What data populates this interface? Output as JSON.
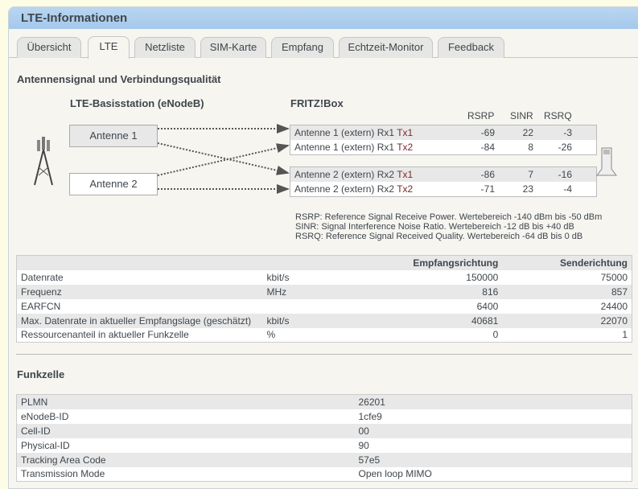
{
  "title": "LTE-Informationen",
  "tabs": [
    "Übersicht",
    "LTE",
    "Netzliste",
    "SIM-Karte",
    "Empfang",
    "Echtzeit-Monitor",
    "Feedback"
  ],
  "active_tab": "LTE",
  "section1": {
    "title": "Antennensignal und Verbindungsqualität",
    "station_title": "LTE-Basisstation (eNodeB)",
    "fritz_title": "FRITZ!Box",
    "antennas": [
      "Antenne 1",
      "Antenne 2"
    ],
    "cols": [
      "RSRP",
      "SINR",
      "RSRQ"
    ],
    "rows": [
      {
        "label": "Antenne 1 (extern) Rx1 ",
        "tx": "Tx1",
        "rsrp": "-69",
        "sinr": "22",
        "rsrq": "-3"
      },
      {
        "label": "Antenne 1 (extern) Rx1 ",
        "tx": "Tx2",
        "rsrp": "-84",
        "sinr": "8",
        "rsrq": "-26"
      },
      {
        "label": "Antenne 2 (extern) Rx2 ",
        "tx": "Tx1",
        "rsrp": "-86",
        "sinr": "7",
        "rsrq": "-16"
      },
      {
        "label": "Antenne 2 (extern) Rx2 ",
        "tx": "Tx2",
        "rsrp": "-71",
        "sinr": "23",
        "rsrq": "-4"
      }
    ],
    "legend": [
      "RSRP: Reference Signal Receive Power. Wertebereich -140 dBm bis -50 dBm",
      "SINR: Signal Interference Noise Ratio. Wertebereich -12 dB bis +40 dB",
      "RSRQ: Reference Signal Received Quality. Wertebereich -64 dB bis 0 dB"
    ]
  },
  "rates": {
    "headers": [
      "Empfangsrichtung",
      "Senderichtung"
    ],
    "rows": [
      {
        "label": "Datenrate",
        "unit": "kbit/s",
        "rx": "150000",
        "tx": "75000"
      },
      {
        "label": "Frequenz",
        "unit": "MHz",
        "rx": "816",
        "tx": "857"
      },
      {
        "label": "EARFCN",
        "unit": "",
        "rx": "6400",
        "tx": "24400"
      },
      {
        "label": "Max. Datenrate in aktueller Empfangslage (geschätzt)",
        "unit": "kbit/s",
        "rx": "40681",
        "tx": "22070"
      },
      {
        "label": "Ressourcenanteil in aktueller Funkzelle",
        "unit": "%",
        "rx": "0",
        "tx": "1"
      }
    ]
  },
  "cell": {
    "title": "Funkzelle",
    "rows": [
      {
        "label": "PLMN",
        "value": "26201"
      },
      {
        "label": "eNodeB-ID",
        "value": "1cfe9"
      },
      {
        "label": "Cell-ID",
        "value": "00"
      },
      {
        "label": "Physical-ID",
        "value": "90"
      },
      {
        "label": "Tracking Area Code",
        "value": "57e5"
      },
      {
        "label": "Transmission Mode",
        "value": "Open loop MIMO"
      }
    ]
  }
}
